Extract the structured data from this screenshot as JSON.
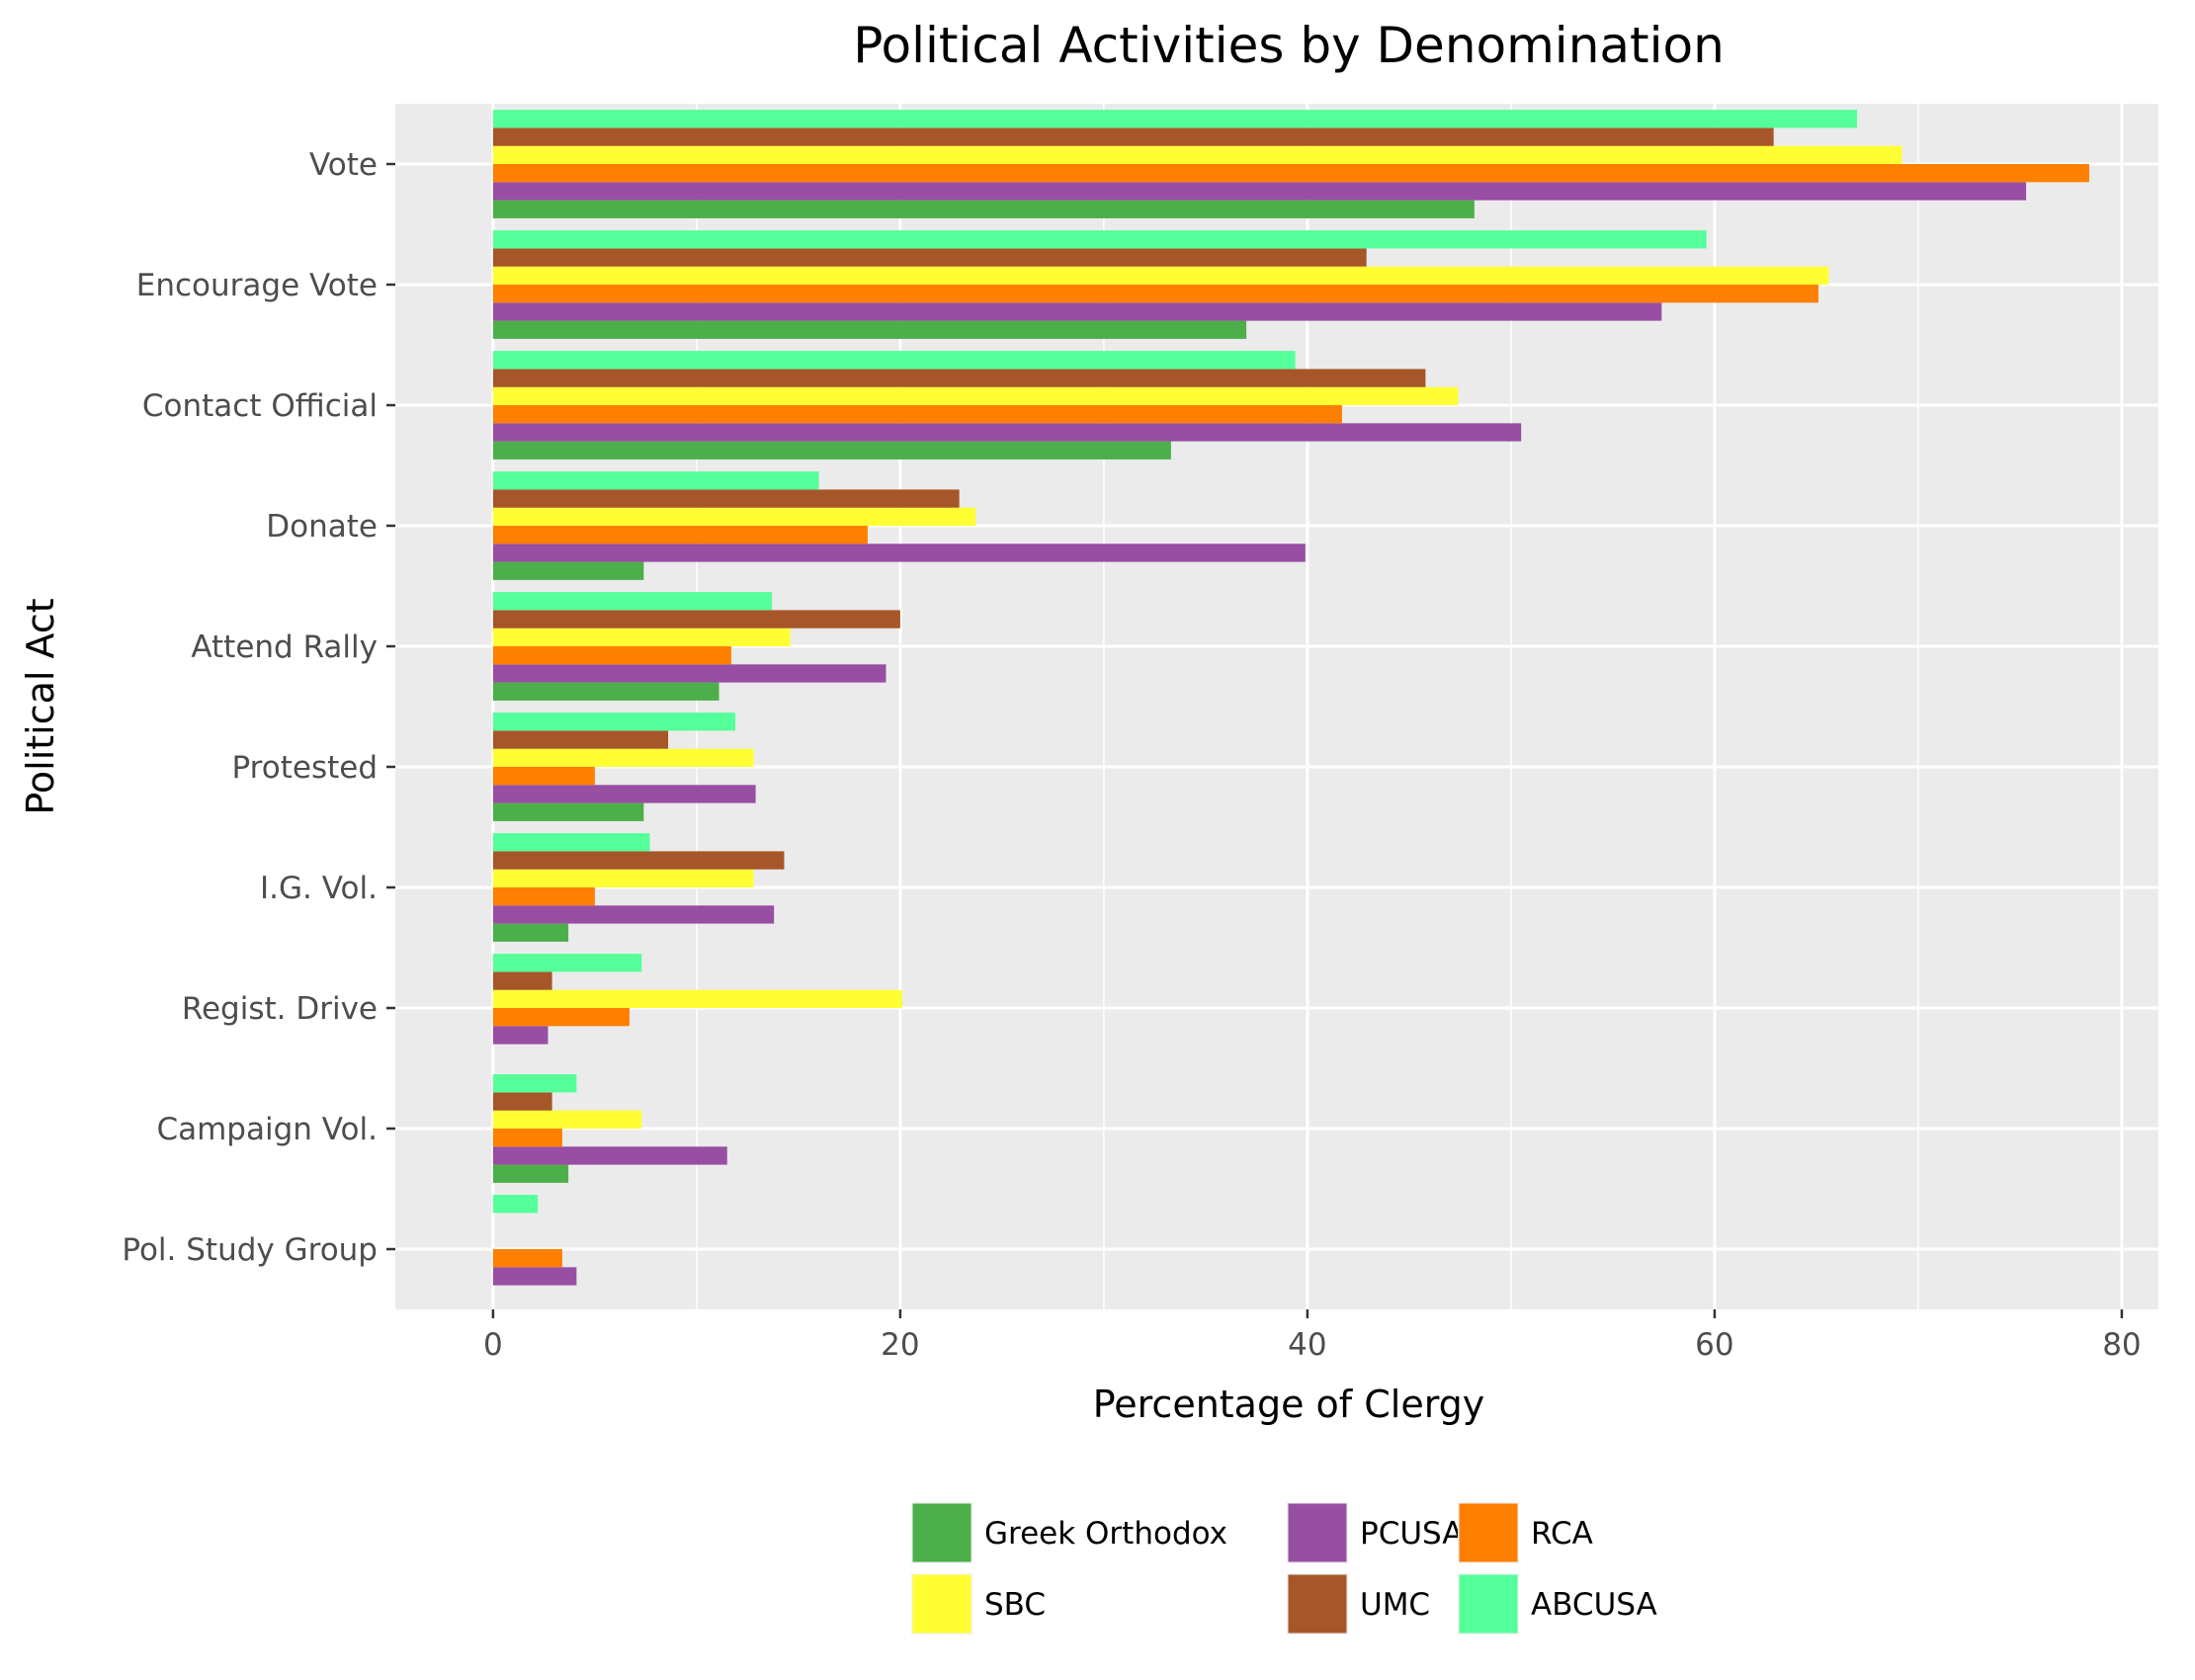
{
  "chart_data": {
    "type": "bar",
    "orientation": "horizontal",
    "title": "Political Activities by Denomination",
    "xlabel": "Percentage of Clergy",
    "ylabel": "Political Act",
    "xlim": [
      -4.8,
      81.8
    ],
    "xticks": [
      0,
      20,
      40,
      60,
      80
    ],
    "grid": true,
    "legend_position": "bottom",
    "categories": [
      "Vote",
      "Encourage Vote",
      "Contact Official",
      "Donate",
      "Attend Rally",
      "Protested",
      "I.G. Vol.",
      "Regist. Drive",
      "Campaign Vol.",
      "Pol. Study Group"
    ],
    "series": [
      {
        "name": "Greek Orthodox",
        "color": "#4daf4a",
        "values": [
          48.2,
          37.0,
          33.3,
          7.4,
          11.1,
          7.4,
          3.7,
          0,
          3.7,
          0
        ]
      },
      {
        "name": "PCUSA",
        "color": "#984ea3",
        "values": [
          75.3,
          57.4,
          50.5,
          39.9,
          19.3,
          12.9,
          13.8,
          2.7,
          11.5,
          4.1
        ]
      },
      {
        "name": "RCA",
        "color": "#ff7f00",
        "values": [
          78.4,
          65.1,
          41.7,
          18.4,
          11.7,
          5.0,
          5.0,
          6.7,
          3.4,
          3.4
        ]
      },
      {
        "name": "SBC",
        "color": "#ffff33",
        "values": [
          69.2,
          65.6,
          47.4,
          23.7,
          14.6,
          12.8,
          12.8,
          20.1,
          7.3,
          0
        ]
      },
      {
        "name": "UMC",
        "color": "#a65628",
        "values": [
          62.9,
          42.9,
          45.8,
          22.9,
          20.0,
          8.6,
          14.3,
          2.9,
          2.9,
          0
        ]
      },
      {
        "name": "ABCUSA",
        "color": "#55ff99",
        "values": [
          67.0,
          59.6,
          39.4,
          16.0,
          13.7,
          11.9,
          7.7,
          7.3,
          4.1,
          2.2
        ]
      }
    ]
  }
}
